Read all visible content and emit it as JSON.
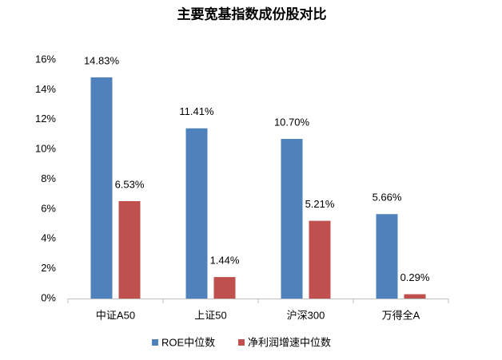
{
  "chart_data": {
    "type": "bar",
    "title": "主要宽基指数成份股对比",
    "categories": [
      "中证A50",
      "上证50",
      "沪深300",
      "万得全A"
    ],
    "series": [
      {
        "name": "ROE中位数",
        "color": "#4f81bd",
        "values": [
          14.83,
          11.41,
          10.7,
          5.66
        ],
        "value_labels": [
          "14.83%",
          "11.41%",
          "10.70%",
          "5.66%"
        ]
      },
      {
        "name": "净利润增速中位数",
        "color": "#c0504d",
        "values": [
          6.53,
          1.44,
          5.21,
          0.29
        ],
        "value_labels": [
          "6.53%",
          "1.44%",
          "5.21%",
          "0.29%"
        ]
      }
    ],
    "ylim": [
      0,
      16
    ],
    "yticks": [
      {
        "value": 0,
        "label": "0%"
      },
      {
        "value": 2,
        "label": "2%"
      },
      {
        "value": 4,
        "label": "4%"
      },
      {
        "value": 6,
        "label": "6%"
      },
      {
        "value": 8,
        "label": "8%"
      },
      {
        "value": 10,
        "label": "10%"
      },
      {
        "value": 12,
        "label": "12%"
      },
      {
        "value": 14,
        "label": "14%"
      },
      {
        "value": 16,
        "label": "16%"
      }
    ],
    "legend": "bottom"
  }
}
